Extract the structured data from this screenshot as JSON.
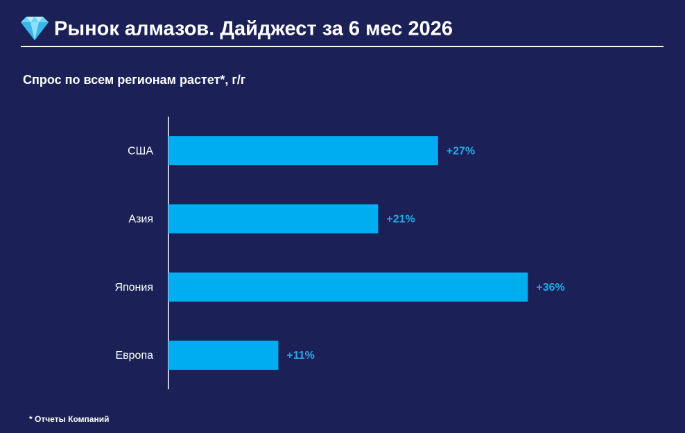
{
  "chart_data": {
    "type": "hbar",
    "title": "Рынок алмазов. Дайджест за 6 мес 2026",
    "subtitle": "Спрос по всем регионам растет*, г/г",
    "footnote": "* Отчеты Компаний",
    "categories": [
      "США",
      "Азия",
      "Япония",
      "Европа"
    ],
    "values": [
      27,
      21,
      36,
      11
    ],
    "value_labels": [
      "+27%",
      "+21%",
      "+36%",
      "+11%"
    ],
    "color": "#00aeef",
    "label_color": "#2aa7e8",
    "xlim": [
      0,
      50
    ]
  }
}
